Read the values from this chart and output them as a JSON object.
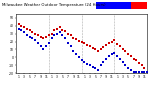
{
  "title": "Milwaukee Weather Outdoor Temperature vs Wind Chill (24 Hours)",
  "background_color": "#ffffff",
  "plot_bg_color": "#ffffff",
  "legend_blue_color": "#0000ff",
  "legend_red_color": "#ff0000",
  "x_ticks": [
    1,
    3,
    5,
    7,
    9,
    11,
    13,
    15,
    17,
    19,
    21,
    23,
    25,
    27,
    29,
    31,
    33,
    35,
    37,
    39,
    41,
    43,
    45,
    47
  ],
  "x_tick_labels": [
    "1",
    "3",
    "5",
    "7",
    "9",
    "11",
    "1",
    "3",
    "5",
    "7",
    "9",
    "11",
    "1",
    "3",
    "5",
    "7",
    "9",
    "11",
    "1",
    "3",
    "5",
    "7",
    "9",
    "11"
  ],
  "vlines": [
    12,
    24,
    36
  ],
  "ylim": [
    -20,
    55
  ],
  "xlim": [
    0,
    48
  ],
  "y_ticks": [
    -20,
    -10,
    0,
    10,
    20,
    30,
    40,
    50
  ],
  "y_tick_labels": [
    "-20",
    "-10",
    "0",
    "10",
    "20",
    "30",
    "40",
    "50"
  ],
  "temp_x": [
    1,
    2,
    3,
    4,
    5,
    6,
    7,
    8,
    9,
    10,
    11,
    12,
    13,
    14,
    15,
    16,
    17,
    18,
    19,
    20,
    21,
    22,
    23,
    24,
    25,
    26,
    27,
    28,
    29,
    30,
    31,
    32,
    33,
    34,
    35,
    36,
    37,
    38,
    39,
    40,
    41,
    42,
    43,
    44,
    45,
    46,
    47,
    48
  ],
  "temp_y": [
    42,
    40,
    38,
    36,
    34,
    32,
    30,
    28,
    26,
    24,
    26,
    28,
    30,
    34,
    36,
    38,
    35,
    33,
    30,
    28,
    25,
    23,
    21,
    20,
    18,
    16,
    14,
    12,
    10,
    8,
    10,
    13,
    16,
    18,
    20,
    22,
    17,
    14,
    11,
    8,
    4,
    2,
    -2,
    -4,
    -7,
    -10,
    -14,
    -18
  ],
  "temp_color": "#cc0000",
  "wind_x": [
    1,
    2,
    3,
    4,
    5,
    6,
    7,
    8,
    9,
    10,
    11,
    12,
    13,
    14,
    15,
    16,
    17,
    18,
    19,
    20,
    21,
    22,
    23,
    24,
    25,
    26,
    27,
    28,
    29,
    30,
    31,
    32,
    33,
    34,
    35,
    36,
    37,
    38,
    39,
    40,
    41,
    42,
    43,
    44,
    45,
    46,
    47,
    48
  ],
  "wind_y": [
    36,
    34,
    32,
    28,
    26,
    24,
    22,
    18,
    14,
    10,
    14,
    18,
    24,
    28,
    30,
    32,
    28,
    24,
    18,
    14,
    8,
    4,
    0,
    -4,
    -6,
    -8,
    -10,
    -12,
    -14,
    -16,
    -10,
    -6,
    -2,
    2,
    4,
    6,
    2,
    -2,
    -6,
    -10,
    -14,
    -16,
    -18,
    -18,
    -18,
    -18,
    -18,
    -18
  ],
  "wind_color": "#0000cc",
  "dot_size": 2.0,
  "title_fontsize": 2.8,
  "tick_fontsize": 2.2
}
